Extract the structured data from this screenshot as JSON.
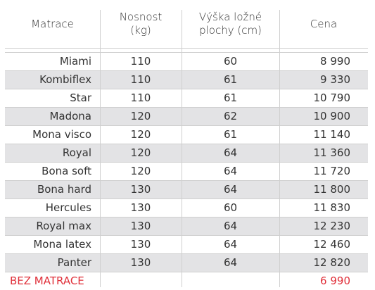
{
  "table": {
    "headers": [
      "Matrace",
      "Nosnost\n(kg)",
      "Výška ložné\nplochy (cm)",
      "Cena"
    ],
    "rows": [
      [
        "Miami",
        "110",
        "60",
        "8 990"
      ],
      [
        "Kombiflex",
        "110",
        "61",
        "9 330"
      ],
      [
        "Star",
        "110",
        "61",
        "10 790"
      ],
      [
        "Madona",
        "120",
        "62",
        "10 900"
      ],
      [
        "Mona visco",
        "120",
        "61",
        "11 140"
      ],
      [
        "Royal",
        "120",
        "64",
        "11 360"
      ],
      [
        "Bona soft",
        "120",
        "64",
        "11 720"
      ],
      [
        "Bona hard",
        "130",
        "64",
        "11 800"
      ],
      [
        "Hercules",
        "130",
        "60",
        "11 830"
      ],
      [
        "Royal max",
        "130",
        "64",
        "12 230"
      ],
      [
        "Mona latex",
        "130",
        "64",
        "12 460"
      ],
      [
        "Panter",
        "130",
        "64",
        "12 820"
      ]
    ],
    "footer": [
      "BEZ MATRACE",
      "",
      "",
      "6 990"
    ]
  },
  "colors": {
    "text": "#333333",
    "row_shade": "#e3e3e5",
    "accent_red": "#e0303a",
    "rule": "#cfcfcf"
  }
}
